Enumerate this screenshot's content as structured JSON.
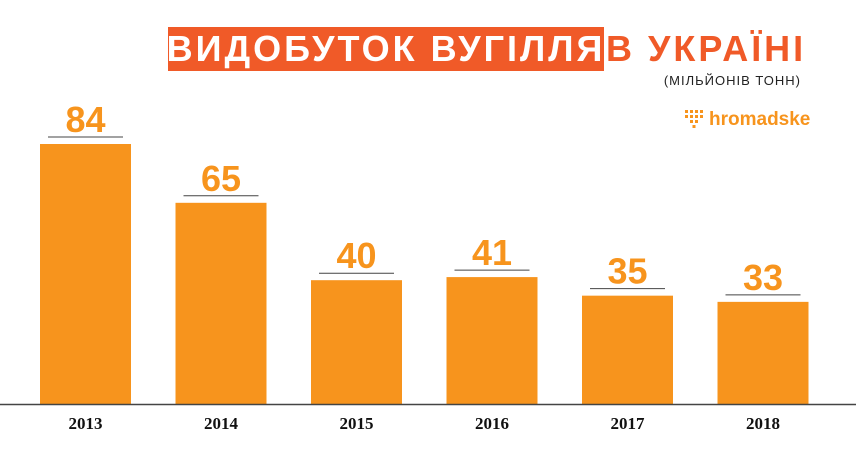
{
  "header": {
    "title_highlight": "ВИДОБУТОК ВУГІЛЛЯ",
    "title_rest": "В УКРАЇНІ",
    "subtitle": "(МІЛЬЙОНІВ ТОНН)",
    "logo_text": "hromadske",
    "logo_icon": "hromadske-dots-logo-icon"
  },
  "colors": {
    "bar": "#f7941d",
    "title_bg": "#f05a28",
    "baseline": "#444444"
  },
  "chart_data": {
    "type": "bar",
    "title": "ВИДОБУТОК ВУГІЛЛЯ В УКРАЇНІ",
    "subtitle": "(МІЛЬЙОНІВ ТОНН)",
    "categories": [
      "2013",
      "2014",
      "2015",
      "2016",
      "2017",
      "2018"
    ],
    "values": [
      84,
      65,
      40,
      41,
      35,
      33
    ],
    "data_labels": [
      "84",
      "65",
      "40",
      "41",
      "35",
      "33"
    ],
    "xlabel": "",
    "ylabel": "",
    "ylim": [
      0,
      84
    ],
    "grid": false,
    "legend": "none"
  }
}
